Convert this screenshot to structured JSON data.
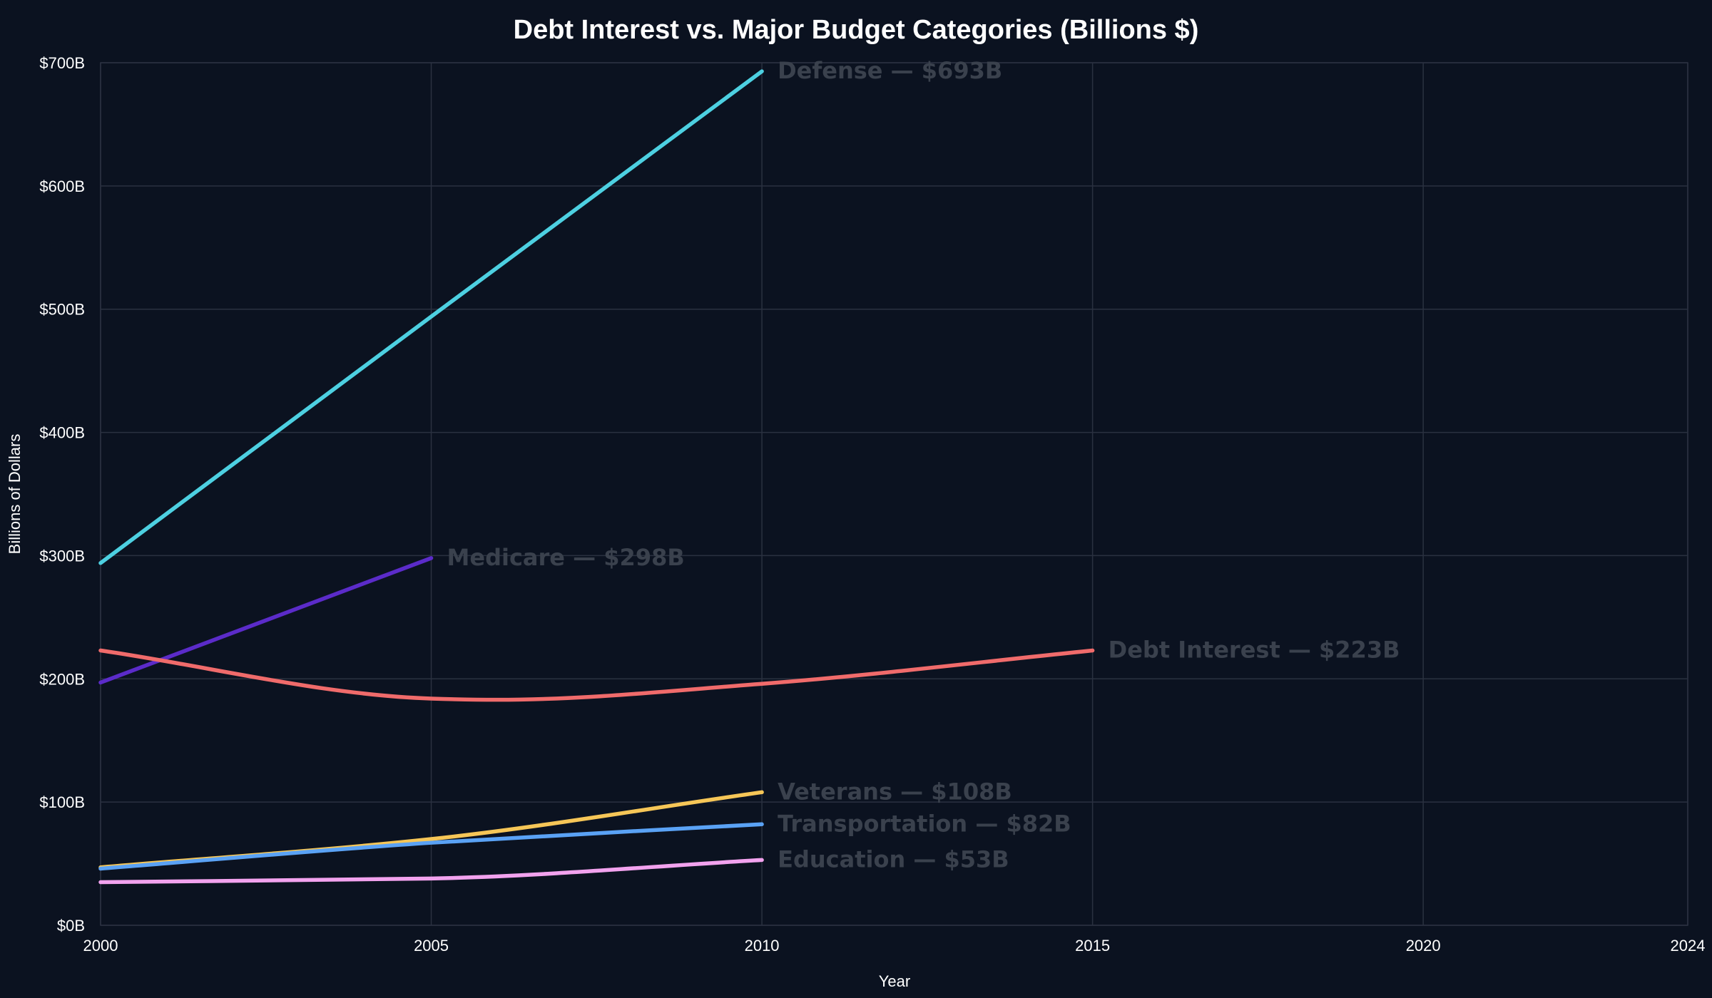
{
  "chart_data": {
    "type": "line",
    "title": "Debt Interest vs. Major Budget Categories (Billions $)",
    "xlabel": "Year",
    "ylabel": "Billions of Dollars",
    "xlim": [
      2000,
      2024
    ],
    "ylim": [
      0,
      700
    ],
    "x_ticks": [
      2000,
      2005,
      2010,
      2015,
      2020,
      2024
    ],
    "y_ticks": [
      0,
      100,
      200,
      300,
      400,
      500,
      600,
      700
    ],
    "y_tick_labels": [
      "$0B",
      "$100B",
      "$200B",
      "$300B",
      "$400B",
      "$500B",
      "$600B",
      "$700B"
    ],
    "grid": true,
    "series": [
      {
        "name": "Defense",
        "end_label": "Defense — $693B",
        "color": "#4dd0e1",
        "x": [
          2000,
          2005,
          2010
        ],
        "values": [
          294,
          494,
          693
        ]
      },
      {
        "name": "Medicare",
        "end_label": "Medicare — $298B",
        "color": "#5b2bc9",
        "x": [
          2000,
          2005
        ],
        "values": [
          197,
          298
        ]
      },
      {
        "name": "Debt Interest",
        "end_label": "Debt Interest — $223B",
        "color": "#f06b6b",
        "x": [
          2000,
          2005,
          2006,
          2010,
          2015
        ],
        "values": [
          223,
          184,
          183,
          196,
          223
        ]
      },
      {
        "name": "Veterans",
        "end_label": "Veterans — $108B",
        "color": "#f6c657",
        "x": [
          2000,
          2005,
          2010
        ],
        "values": [
          47,
          70,
          108
        ]
      },
      {
        "name": "Transportation",
        "end_label": "Transportation — $82B",
        "color": "#5aa2f5",
        "x": [
          2000,
          2005,
          2010
        ],
        "values": [
          46,
          67,
          82
        ]
      },
      {
        "name": "Education",
        "end_label": "Education — $53B",
        "color": "#f2a2ee",
        "x": [
          2000,
          2005,
          2010
        ],
        "values": [
          35,
          38,
          53
        ]
      }
    ]
  }
}
